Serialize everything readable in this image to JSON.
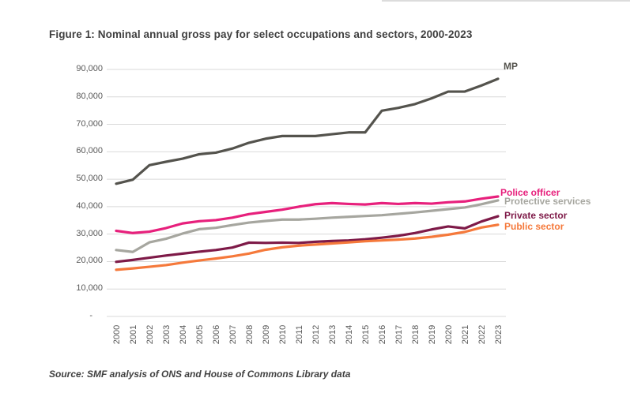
{
  "page": {
    "title": "Figure 1: Nominal annual gross pay for select occupations and sectors, 2000-2023",
    "source": "Source: SMF analysis of ONS and House of Commons Library data"
  },
  "colors": {
    "title_text": "#3F3F3F",
    "axis_label_text": "#595959",
    "gridline": "#D9D9D9",
    "background": "#FFFFFF"
  },
  "chart_data": {
    "type": "line",
    "title": "Figure 1: Nominal annual gross pay for select occupations and sectors, 2000-2023",
    "x": [
      "2000",
      "2001",
      "2002",
      "2003",
      "2004",
      "2005",
      "2006",
      "2007",
      "2008",
      "2009",
      "2010",
      "2011",
      "2012",
      "2013",
      "2014",
      "2015",
      "2016",
      "2017",
      "2018",
      "2019",
      "2020",
      "2021",
      "2022",
      "2023"
    ],
    "y_axis": {
      "min": 0,
      "max": 90000,
      "tick_step": 10000,
      "tick_values": [
        0,
        10000,
        20000,
        30000,
        40000,
        50000,
        60000,
        70000,
        80000,
        90000
      ],
      "tick_labels": [
        "-",
        "10,000",
        "20,000",
        "30,000",
        "40,000",
        "50,000",
        "60,000",
        "70,000",
        "80,000",
        "90,000"
      ]
    },
    "grid": "horizontal",
    "legend_position": "line-end-labels-right",
    "series": [
      {
        "name": "MP",
        "color": "#54534D",
        "values": [
          48371,
          49822,
          55118,
          56358,
          57485,
          59095,
          59686,
          61181,
          63291,
          64766,
          65738,
          65738,
          65738,
          66396,
          67060,
          67060,
          74962,
          76011,
          77379,
          79468,
          81932,
          81932,
          84144,
          86584
        ]
      },
      {
        "name": "Police officer",
        "color": "#E7207C",
        "values": [
          31200,
          30400,
          30900,
          32200,
          33900,
          34700,
          35100,
          36000,
          37300,
          38100,
          38900,
          40000,
          40900,
          41300,
          41000,
          40800,
          41300,
          41000,
          41300,
          41100,
          41600,
          41900,
          42900,
          43700
        ]
      },
      {
        "name": "Protective services",
        "color": "#A6A69F",
        "values": [
          24200,
          23500,
          27000,
          28300,
          30200,
          31800,
          32300,
          33300,
          34200,
          34800,
          35300,
          35300,
          35600,
          36000,
          36300,
          36600,
          36900,
          37400,
          37900,
          38500,
          39100,
          39700,
          40900,
          42300
        ]
      },
      {
        "name": "Private sector",
        "color": "#7E1A48",
        "values": [
          19900,
          20600,
          21400,
          22200,
          22900,
          23600,
          24200,
          25100,
          26900,
          26800,
          26900,
          26800,
          27200,
          27500,
          27700,
          28100,
          28700,
          29400,
          30400,
          31700,
          32800,
          32100,
          34600,
          36500
        ]
      },
      {
        "name": "Public sector",
        "color": "#F5793B",
        "values": [
          17000,
          17500,
          18100,
          18700,
          19600,
          20400,
          21100,
          21900,
          22900,
          24300,
          25200,
          25800,
          26200,
          26600,
          27000,
          27400,
          27700,
          28000,
          28400,
          29000,
          29800,
          30800,
          32400,
          33400
        ]
      }
    ]
  }
}
